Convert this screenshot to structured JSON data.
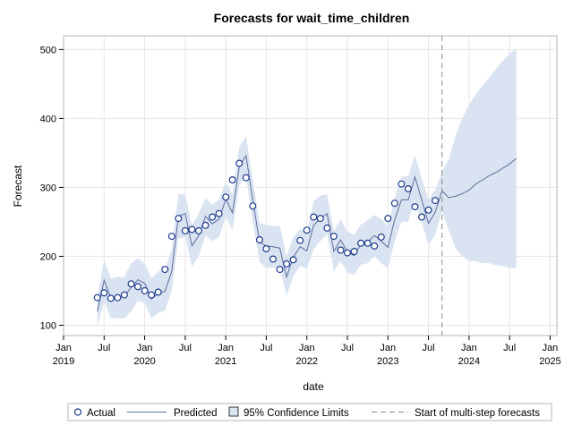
{
  "chart_data": {
    "type": "line",
    "title": "Forecasts for wait_time_children",
    "xlabel": "date",
    "ylabel": "Forecast",
    "ylim": [
      85,
      520
    ],
    "yticks": [
      100,
      200,
      300,
      400,
      500
    ],
    "xlim": [
      "2019-01-01",
      "2025-02-01"
    ],
    "xticks": [
      {
        "date": "2019-01-01",
        "month": "Jan",
        "year": "2019"
      },
      {
        "date": "2019-07-01",
        "month": "Jul",
        "year": ""
      },
      {
        "date": "2020-01-01",
        "month": "Jan",
        "year": "2020"
      },
      {
        "date": "2020-07-01",
        "month": "Jul",
        "year": ""
      },
      {
        "date": "2021-01-01",
        "month": "Jan",
        "year": "2021"
      },
      {
        "date": "2021-07-01",
        "month": "Jul",
        "year": ""
      },
      {
        "date": "2022-01-01",
        "month": "Jan",
        "year": "2022"
      },
      {
        "date": "2022-07-01",
        "month": "Jul",
        "year": ""
      },
      {
        "date": "2023-01-01",
        "month": "Jan",
        "year": "2023"
      },
      {
        "date": "2023-07-01",
        "month": "Jul",
        "year": ""
      },
      {
        "date": "2024-01-01",
        "month": "Jan",
        "year": "2024"
      },
      {
        "date": "2024-07-01",
        "month": "Jul",
        "year": ""
      },
      {
        "date": "2025-01-01",
        "month": "Jan",
        "year": "2025"
      }
    ],
    "grid": true,
    "legend_placement": "bottom",
    "legend": {
      "actual": "Actual",
      "predicted": "Predicted",
      "confidence": "95% Confidence Limits",
      "forecast_start": "Start of multi-step forecasts"
    },
    "forecast_start": "2023-09-01",
    "colors": {
      "band": "#dae3f1",
      "line": "#5d6f9b",
      "marker": "#1c3c8c",
      "grid": "#e6e6e6",
      "frame": "#b5b5b5",
      "vline": "#888888"
    },
    "series": [
      {
        "name": "Actual",
        "x": [
          "2019-06-01",
          "2019-07-01",
          "2019-08-01",
          "2019-09-01",
          "2019-10-01",
          "2019-11-01",
          "2019-12-01",
          "2020-01-01",
          "2020-02-01",
          "2020-03-01",
          "2020-04-01",
          "2020-05-01",
          "2020-06-01",
          "2020-07-01",
          "2020-08-01",
          "2020-09-01",
          "2020-10-01",
          "2020-11-01",
          "2020-12-01",
          "2021-01-01",
          "2021-02-01",
          "2021-03-01",
          "2021-04-01",
          "2021-05-01",
          "2021-06-01",
          "2021-07-01",
          "2021-08-01",
          "2021-09-01",
          "2021-10-01",
          "2021-11-01",
          "2021-12-01",
          "2022-01-01",
          "2022-02-01",
          "2022-03-01",
          "2022-04-01",
          "2022-05-01",
          "2022-06-01",
          "2022-07-01",
          "2022-08-01",
          "2022-09-01",
          "2022-10-01",
          "2022-11-01",
          "2022-12-01",
          "2023-01-01",
          "2023-02-01",
          "2023-03-01",
          "2023-04-01",
          "2023-05-01",
          "2023-06-01",
          "2023-07-01",
          "2023-08-01"
        ],
        "y": [
          140,
          147,
          139,
          140,
          144,
          160,
          156,
          150,
          144,
          148,
          181,
          229,
          255,
          237,
          239,
          237,
          245,
          257,
          262,
          286,
          311,
          335,
          314,
          273,
          224,
          211,
          196,
          181,
          189,
          195,
          223,
          238,
          257,
          255,
          241,
          229,
          209,
          205,
          207,
          219,
          219,
          215,
          228,
          255,
          277,
          305,
          298,
          272,
          257,
          267,
          281
        ]
      },
      {
        "name": "Predicted",
        "x": [
          "2019-06-01",
          "2019-07-01",
          "2019-08-01",
          "2019-09-01",
          "2019-10-01",
          "2019-11-01",
          "2019-12-01",
          "2020-01-01",
          "2020-02-01",
          "2020-03-01",
          "2020-04-01",
          "2020-05-01",
          "2020-06-01",
          "2020-07-01",
          "2020-08-01",
          "2020-09-01",
          "2020-10-01",
          "2020-11-01",
          "2020-12-01",
          "2021-01-01",
          "2021-02-01",
          "2021-03-01",
          "2021-04-01",
          "2021-05-01",
          "2021-06-01",
          "2021-07-01",
          "2021-08-01",
          "2021-09-01",
          "2021-10-01",
          "2021-11-01",
          "2021-12-01",
          "2022-01-01",
          "2022-02-01",
          "2022-03-01",
          "2022-04-01",
          "2022-05-01",
          "2022-06-01",
          "2022-07-01",
          "2022-08-01",
          "2022-09-01",
          "2022-10-01",
          "2022-11-01",
          "2022-12-01",
          "2023-01-01",
          "2023-02-01",
          "2023-03-01",
          "2023-04-01",
          "2023-05-01",
          "2023-06-01",
          "2023-07-01",
          "2023-08-01",
          "2023-09-01",
          "2023-10-01",
          "2023-11-01",
          "2023-12-01",
          "2024-01-01",
          "2024-02-01",
          "2024-03-01",
          "2024-04-01",
          "2024-05-01",
          "2024-06-01",
          "2024-07-01",
          "2024-08-01"
        ],
        "y": [
          120,
          165,
          140,
          140,
          142,
          155,
          166,
          161,
          138,
          146,
          149,
          178,
          258,
          262,
          215,
          230,
          258,
          247,
          254,
          283,
          263,
          330,
          346,
          282,
          221,
          215,
          214,
          212,
          170,
          199,
          214,
          208,
          245,
          255,
          262,
          207,
          224,
          206,
          201,
          218,
          221,
          230,
          222,
          213,
          253,
          282,
          282,
          315,
          282,
          248,
          264,
          295,
          285,
          287,
          291,
          296,
          305,
          311,
          317,
          322,
          328,
          334,
          342
        ],
        "upper": [
          140,
          195,
          168,
          170,
          170,
          190,
          197,
          190,
          168,
          178,
          180,
          210,
          290,
          290,
          245,
          262,
          285,
          275,
          282,
          308,
          290,
          358,
          374,
          312,
          248,
          246,
          244,
          244,
          200,
          228,
          240,
          234,
          280,
          288,
          290,
          236,
          254,
          236,
          231,
          246,
          252,
          260,
          254,
          244,
          285,
          316,
          316,
          347,
          313,
          282,
          296,
          322,
          340,
          375,
          400,
          420,
          435,
          448,
          460,
          472,
          484,
          494,
          502
        ],
        "lower": [
          97,
          135,
          110,
          110,
          110,
          120,
          136,
          132,
          110,
          118,
          121,
          150,
          226,
          228,
          185,
          200,
          230,
          222,
          228,
          258,
          237,
          303,
          316,
          250,
          192,
          183,
          184,
          182,
          143,
          171,
          186,
          182,
          210,
          222,
          232,
          178,
          193,
          176,
          173,
          188,
          190,
          200,
          190,
          183,
          222,
          250,
          250,
          282,
          250,
          216,
          232,
          266,
          238,
          212,
          200,
          193,
          193,
          190,
          190,
          187,
          186,
          183,
          183
        ]
      }
    ]
  }
}
